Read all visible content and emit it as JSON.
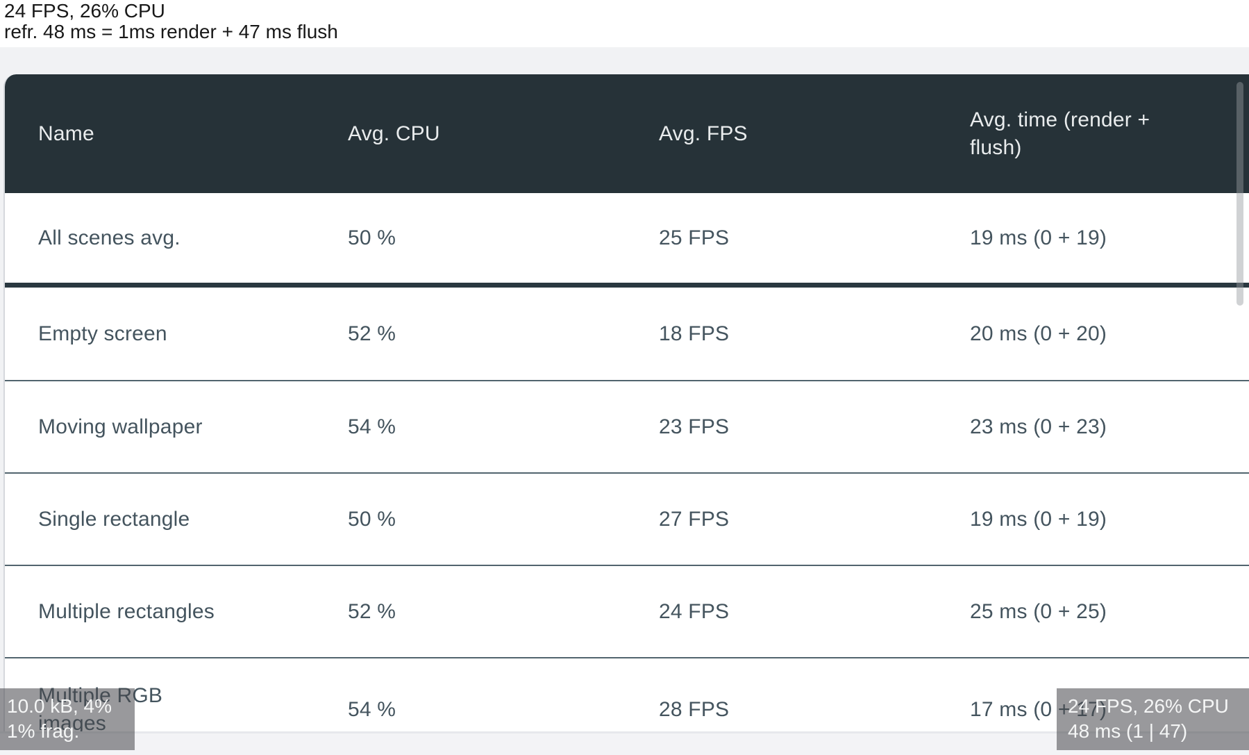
{
  "sysmon_top": {
    "line1": "24 FPS, 26% CPU",
    "line2": "refr. 48 ms = 1ms render + 47 ms flush"
  },
  "table": {
    "header": [
      "Name",
      "Avg. CPU",
      "Avg. FPS",
      "Avg. time (render + flush)"
    ],
    "rows": [
      {
        "name": "All scenes avg.",
        "cpu": "50 %",
        "fps": "25 FPS",
        "time": "19 ms (0 + 19)"
      },
      {
        "name": "Empty screen",
        "cpu": "52 %",
        "fps": "18 FPS",
        "time": "20 ms (0 + 20)"
      },
      {
        "name": "Moving wallpaper",
        "cpu": "54 %",
        "fps": "23 FPS",
        "time": "23 ms (0 + 23)"
      },
      {
        "name": "Single rectangle",
        "cpu": "50 %",
        "fps": "27 FPS",
        "time": "19 ms (0 + 19)"
      },
      {
        "name": "Multiple rectangles",
        "cpu": "52 %",
        "fps": "24 FPS",
        "time": "25 ms (0 + 25)"
      },
      {
        "name": "Multiple RGB images",
        "cpu": "54 %",
        "fps": "28 FPS",
        "time": "17 ms (0 + 17)"
      }
    ]
  },
  "monitor_bottom_left": {
    "line1": "10.0 kB, 4%",
    "line2": "1% frag."
  },
  "monitor_bottom_right": {
    "line1": "24 FPS, 26% CPU",
    "line2": "48 ms (1 | 47)"
  },
  "colors": {
    "header_bg": "#263238",
    "header_text": "#e9eced",
    "row_text": "#44545e",
    "thick_divider": "#2a3840",
    "row_separator": "#51646e",
    "overlay_bg": "rgba(70,70,74,0.55)",
    "page_bg": "#f1f2f4"
  }
}
